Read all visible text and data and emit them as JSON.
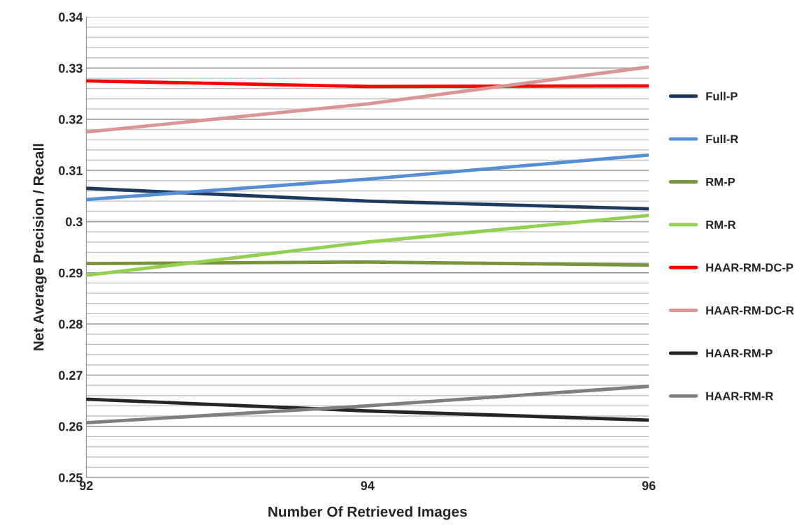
{
  "chart_data": {
    "type": "line",
    "xlabel": "Number Of Retrieved Images",
    "ylabel": "Net Average Precision / Recall",
    "x": [
      92,
      94,
      96
    ],
    "xlim": [
      92,
      96
    ],
    "xticks": [
      92,
      94,
      96
    ],
    "ylim": [
      0.25,
      0.34
    ],
    "yticks": [
      0.25,
      {
        "value": 0.252,
        "label": null
      },
      {
        "value": 0.254,
        "label": null
      },
      {
        "value": 0.256,
        "label": null
      },
      {
        "value": 0.258,
        "label": null
      },
      0.26,
      {
        "value": 0.262,
        "label": null
      },
      {
        "value": 0.264,
        "label": null
      },
      {
        "value": 0.266,
        "label": null
      },
      {
        "value": 0.268,
        "label": null
      },
      0.27,
      {
        "value": 0.272,
        "label": null
      },
      {
        "value": 0.274,
        "label": null
      },
      {
        "value": 0.276,
        "label": null
      },
      {
        "value": 0.278,
        "label": null
      },
      0.28,
      {
        "value": 0.282,
        "label": null
      },
      {
        "value": 0.284,
        "label": null
      },
      {
        "value": 0.286,
        "label": null
      },
      {
        "value": 0.288,
        "label": null
      },
      0.29,
      {
        "value": 0.292,
        "label": null
      },
      {
        "value": 0.294,
        "label": null
      },
      {
        "value": 0.296,
        "label": null
      },
      {
        "value": 0.298,
        "label": null
      },
      0.3,
      {
        "value": 0.302,
        "label": null
      },
      {
        "value": 0.304,
        "label": null
      },
      {
        "value": 0.306,
        "label": null
      },
      {
        "value": 0.308,
        "label": null
      },
      0.31,
      {
        "value": 0.312,
        "label": null
      },
      {
        "value": 0.314,
        "label": null
      },
      {
        "value": 0.316,
        "label": null
      },
      {
        "value": 0.318,
        "label": null
      },
      0.32,
      {
        "value": 0.322,
        "label": null
      },
      {
        "value": 0.324,
        "label": null
      },
      {
        "value": 0.326,
        "label": null
      },
      {
        "value": 0.328,
        "label": null
      },
      0.33,
      {
        "value": 0.332,
        "label": null
      },
      {
        "value": 0.334,
        "label": null
      },
      {
        "value": 0.336,
        "label": null
      },
      {
        "value": 0.338,
        "label": null
      },
      0.34
    ],
    "grid": "y",
    "legend": "right",
    "marker": "none",
    "line_style": "solid",
    "series": [
      {
        "name": "Full-P",
        "color": "#1f3a5f",
        "values": [
          0.3065,
          0.304,
          0.3025
        ]
      },
      {
        "name": "Full-R",
        "color": "#558ed5",
        "values": [
          0.3043,
          0.3083,
          0.313
        ]
      },
      {
        "name": "RM-P",
        "color": "#77933c",
        "values": [
          0.2918,
          0.2921,
          0.2915
        ]
      },
      {
        "name": "RM-R",
        "color": "#92d050",
        "values": [
          0.2895,
          0.296,
          0.3012
        ]
      },
      {
        "name": "HAAR-RM-DC-P",
        "color": "#ff0000",
        "values": [
          0.3275,
          0.3264,
          0.3265
        ]
      },
      {
        "name": "HAAR-RM-DC-R",
        "color": "#d99694",
        "values": [
          0.3175,
          0.323,
          0.3302
        ]
      },
      {
        "name": "HAAR-RM-P",
        "color": "#262626",
        "values": [
          0.2653,
          0.263,
          0.2612
        ]
      },
      {
        "name": "HAAR-RM-R",
        "color": "#7f7f7f",
        "values": [
          0.2607,
          0.264,
          0.2678
        ]
      }
    ]
  }
}
